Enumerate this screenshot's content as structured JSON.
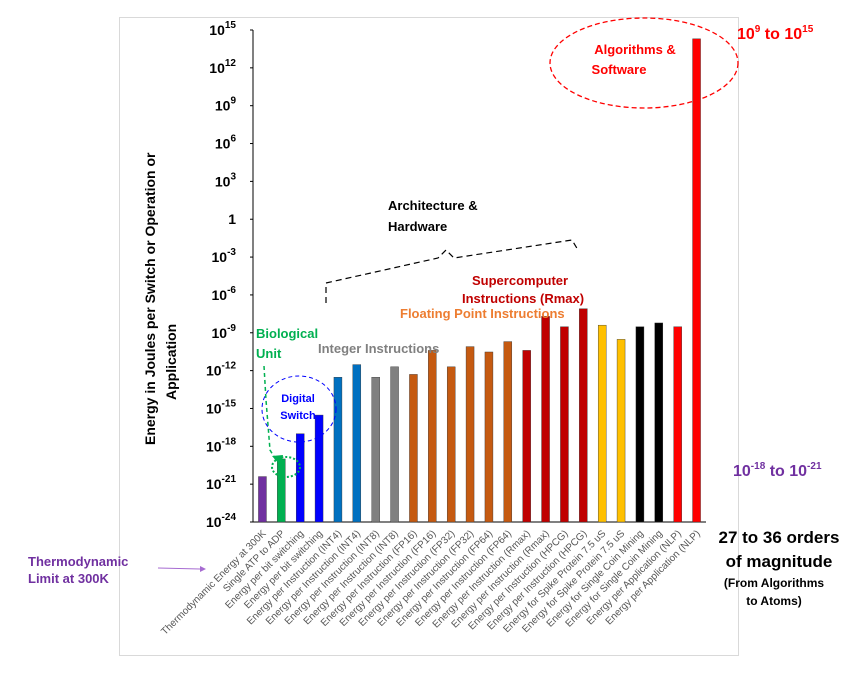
{
  "chart_data": {
    "type": "bar",
    "ylabel": "Energy in Joules per Switch or Operation or Application",
    "yscale": "log10",
    "ylim": [
      "1e-24",
      "1e15"
    ],
    "ytick_labels": [
      {
        "exp": -24,
        "label": "10",
        "sup": "-24"
      },
      {
        "exp": -21,
        "label": "10",
        "sup": "-21"
      },
      {
        "exp": -18,
        "label": "10",
        "sup": "-18"
      },
      {
        "exp": -15,
        "label": "10",
        "sup": "-15"
      },
      {
        "exp": -12,
        "label": "10",
        "sup": "-12"
      },
      {
        "exp": -9,
        "label": "10",
        "sup": "-9"
      },
      {
        "exp": -6,
        "label": "10",
        "sup": "-6"
      },
      {
        "exp": -3,
        "label": "10",
        "sup": "-3"
      },
      {
        "exp": 0,
        "label": "1",
        "sup": ""
      },
      {
        "exp": 3,
        "label": "10",
        "sup": "3"
      },
      {
        "exp": 6,
        "label": "10",
        "sup": "6"
      },
      {
        "exp": 9,
        "label": "10",
        "sup": "9"
      },
      {
        "exp": 12,
        "label": "10",
        "sup": "12"
      },
      {
        "exp": 15,
        "label": "10",
        "sup": "15"
      }
    ],
    "categories": [
      "Thermodynamic Energy at 300K",
      "Single ATP to ADP",
      "Energy per bit switching",
      "Energy per bit switching",
      "Energy per Instruction (INT4)",
      "Energy per Instruction (INT4)",
      "Energy per Instruction (INT8)",
      "Energy per Instruction (INT8)",
      "Energy per Instruction (FP16)",
      "Energy per Instruction (FP16)",
      "Energy per Instruction (FP32)",
      "Energy per Instruction (FP32)",
      "Energy per Instruction (FP64)",
      "Energy per Instruction (FP64)",
      "Energy per Instruction (Rmax)",
      "Energy per Instruction (Rmax)",
      "Energy per Instruction (HPCG)",
      "Energy per Instruction (HPCG)",
      "Energy for Spike Protein 7.5 uS",
      "Energy for Spike Protein 7.5 uS",
      "Energy for Single Coin Mining",
      "Energy for Single Coin Mining",
      "Energy per Application (NLP)",
      "Energy per Application (NLP)"
    ],
    "values": [
      "4e-21",
      "1e-19",
      "1e-17",
      "3e-16",
      "3e-13",
      "3e-12",
      "3e-13",
      "2e-12",
      "5e-13",
      "4e-11",
      "2e-12",
      "8e-11",
      "3e-11",
      "2e-10",
      "4e-11",
      "2e-8",
      "3e-9",
      "8e-8",
      "4e-9",
      "3e-10",
      "3e-9",
      "6e-9",
      "3e-9",
      "2e14"
    ],
    "bar_colors": [
      "#7030A0",
      "#00B050",
      "#0000FF",
      "#0000FF",
      "#0070C0",
      "#0070C0",
      "#808080",
      "#808080",
      "#C55A11",
      "#C55A11",
      "#C55A11",
      "#C55A11",
      "#C55A11",
      "#C55A11",
      "#C00000",
      "#C00000",
      "#C00000",
      "#C00000",
      "#FFC000",
      "#FFC000",
      "#000000",
      "#000000",
      "#FF0000",
      "#FF0000"
    ]
  },
  "annotations": {
    "algorithms": "Algorithms &",
    "software": "Software",
    "top_range_base": "10",
    "top_range_sup1": "9",
    "top_range_to": " to 10",
    "top_range_sup2": "15",
    "bottom_range_base": "10",
    "bottom_range_sup1": "-18",
    "bottom_range_to": " to 10",
    "bottom_range_sup2": "-21",
    "architecture": "Architecture &",
    "hardware": "Hardware",
    "supercomputer": "Supercomputer",
    "rmax": "Instructions  (Rmax)",
    "floating_point": "Floating Point Instructions",
    "integer": "Integer Instructions",
    "biological": "Biological",
    "unit": "Unit",
    "digital": "Digital",
    "switch": "Switch",
    "orders_line1": "27 to 36 orders",
    "orders_line2": "of magnitude",
    "from_line1": "(From Algorithms",
    "from_line2": "to Atoms)",
    "thermo_line1": "Thermodynamic",
    "thermo_line2": "Limit at 300K"
  },
  "colors": {
    "red": "#FF0000",
    "purple": "#7030A0",
    "green": "#00B050",
    "blue": "#0000FF",
    "orange": "#ED7D31",
    "gray": "#808080",
    "darkred": "#C00000"
  }
}
